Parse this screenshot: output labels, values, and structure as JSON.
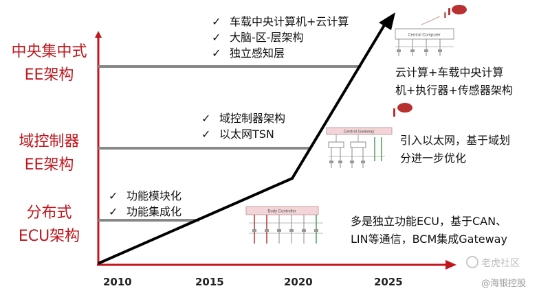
{
  "stages": [
    {
      "lines": [
        "中央集中式",
        "EE架构"
      ],
      "bullets": [
        "车载中央计算机+云计算",
        "大脑-区-层架构",
        "独立感知层"
      ],
      "description": [
        "云计算+车载中央计算",
        "机+执行器+传感器架构"
      ],
      "thumb_label": "Central Computer"
    },
    {
      "lines": [
        "域控制器",
        "EE架构"
      ],
      "bullets": [
        "域控制器架构",
        "以太网TSN"
      ],
      "description": [
        "引入以太网，基于域划",
        "分进一步优化"
      ],
      "thumb_label": "Central Gateway"
    },
    {
      "lines": [
        "分布式",
        "ECU架构"
      ],
      "bullets": [
        "功能模块化",
        "功能集成化"
      ],
      "description": [
        "多是独立功能ECU，基于CAN、",
        "LIN等通信，BCM集成Gateway"
      ],
      "thumb_label": "Body Controller"
    }
  ],
  "years": [
    "2010",
    "2015",
    "2020",
    "2025"
  ],
  "watermark": {
    "primary": "老虎社区",
    "secondary": "@海银控股"
  },
  "colors": {
    "axis": "#c0161c",
    "level_line": "#888888",
    "trend": "#000000",
    "label": "#c0161c"
  }
}
